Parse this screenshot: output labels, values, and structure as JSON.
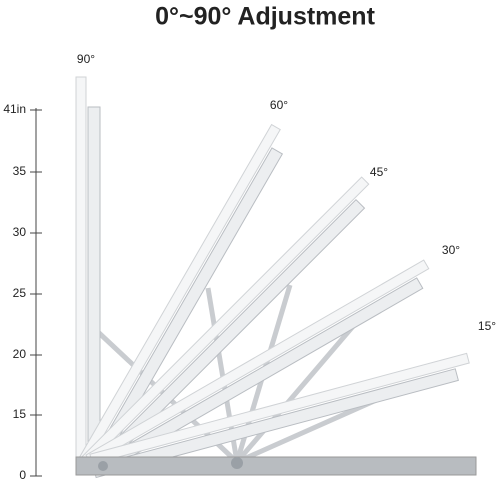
{
  "title": "0°~90° Adjustment",
  "angles": [
    "90°",
    "60°",
    "45°",
    "30°",
    "15°"
  ],
  "ruler": [
    "41in",
    "35",
    "30",
    "25",
    "20",
    "15",
    "0"
  ]
}
